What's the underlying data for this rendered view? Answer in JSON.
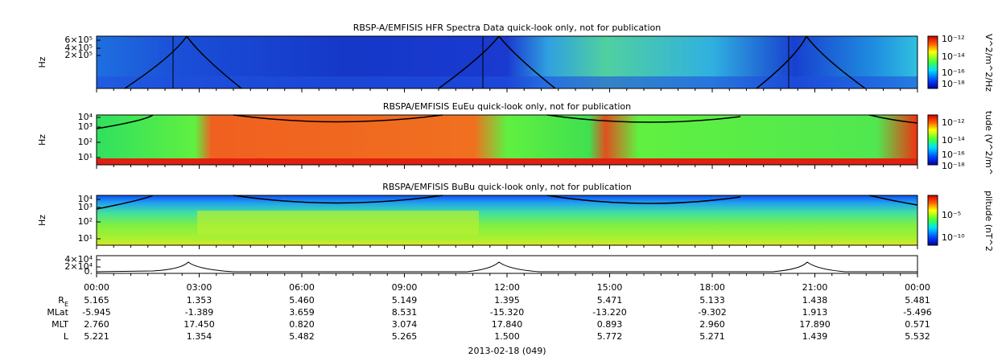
{
  "panels": [
    {
      "title": "RBSP-A/EMFISIS  HFR Spectra Data quick-look only, not for publication",
      "ylabel": "Hz",
      "yticks": [
        "6×10⁵",
        "4×10⁵",
        "2×10⁵"
      ],
      "colorbar_label": "V^2/m^2/Hz",
      "colorbar_ticks": [
        "10⁻¹²",
        "10⁻¹⁴",
        "10⁻¹⁶",
        "10⁻¹⁸"
      ]
    },
    {
      "title": "RBSPA/EMFISIS  EuEu quick-look only, not for publication",
      "ylabel": "Hz",
      "yticks": [
        "10⁴",
        "10³",
        "10²",
        "10¹"
      ],
      "colorbar_label": "tude (V^2/m^",
      "colorbar_ticks": [
        "10⁻¹²",
        "10⁻¹⁴",
        "10⁻¹⁶",
        "10⁻¹⁸"
      ]
    },
    {
      "title": "RBSPA/EMFISIS  BuBu quick-look only, not for publication",
      "ylabel": "Hz",
      "yticks": [
        "10⁴",
        "10³",
        "10²",
        "10¹"
      ],
      "colorbar_label": "plitude (nT^2",
      "colorbar_ticks": [
        "10⁻⁵",
        "10⁻¹⁰"
      ]
    },
    {
      "yticks": [
        "4×10⁴",
        "2×10⁴",
        "0."
      ]
    }
  ],
  "time_labels": [
    "00:00",
    "03:00",
    "06:00",
    "09:00",
    "12:00",
    "15:00",
    "18:00",
    "21:00",
    "00:00"
  ],
  "ephemeris": [
    {
      "label": "R",
      "sub": "E",
      "values": [
        "5.165",
        "1.353",
        "5.460",
        "5.149",
        "1.395",
        "5.471",
        "5.133",
        "1.438",
        "5.481"
      ]
    },
    {
      "label": "MLat",
      "values": [
        "-5.945",
        "-1.389",
        "3.659",
        "8.531",
        "-15.320",
        "-13.220",
        "-9.302",
        "1.913",
        "-5.496"
      ]
    },
    {
      "label": "MLT",
      "values": [
        "2.760",
        "17.450",
        "0.820",
        "3.074",
        "17.840",
        "0.893",
        "2.960",
        "17.890",
        "0.571"
      ]
    },
    {
      "label": "L",
      "values": [
        "5.221",
        "1.354",
        "5.482",
        "5.265",
        "1.500",
        "5.772",
        "5.271",
        "1.439",
        "5.532"
      ]
    }
  ],
  "date": "2013-02-18 (049)"
}
